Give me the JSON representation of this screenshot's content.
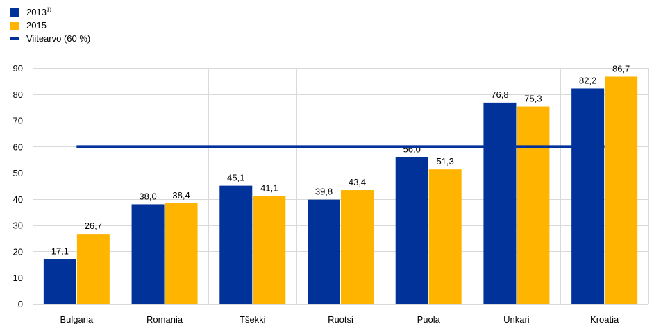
{
  "chart_data": {
    "type": "bar",
    "categories": [
      "Bulgaria",
      "Romania",
      "Tšekki",
      "Ruotsi",
      "Puola",
      "Unkari",
      "Kroatia"
    ],
    "series": [
      {
        "name": "2013",
        "superscript": "1)",
        "color": "#003299",
        "values": [
          17.1,
          38.0,
          45.1,
          39.8,
          56.0,
          76.8,
          82.2
        ],
        "labels": [
          "17,1",
          "38,0",
          "45,1",
          "39,8",
          "56,0",
          "76,8",
          "82,2"
        ]
      },
      {
        "name": "2015",
        "color": "#FFB400",
        "values": [
          26.7,
          38.4,
          41.1,
          43.4,
          51.3,
          75.3,
          86.7
        ],
        "labels": [
          "26,7",
          "38,4",
          "41,1",
          "43,4",
          "51,3",
          "75,3",
          "86,7"
        ]
      }
    ],
    "reference_line": {
      "name": "Viitearvo (60 %)",
      "value": 60,
      "color": "#003299"
    },
    "ylim": [
      0,
      90
    ],
    "yticks": [
      0,
      10,
      20,
      30,
      40,
      50,
      60,
      70,
      80,
      90
    ],
    "grid": true,
    "legend_position": "top-left"
  }
}
